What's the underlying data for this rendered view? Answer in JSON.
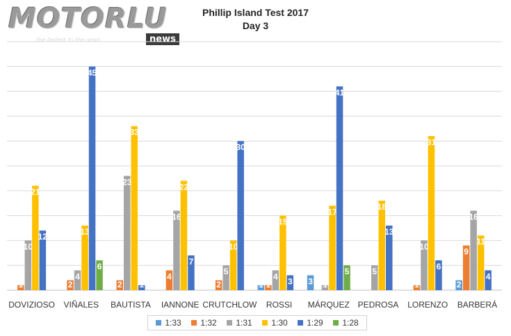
{
  "colors": {
    "1:33": "#5b9bd5",
    "1:32": "#ed7d31",
    "1:31": "#a5a5a5",
    "1:30": "#ffc000",
    "1:29": "#4472c4",
    "1:28": "#70ad47"
  },
  "logo": {
    "main": "MOTORLU",
    "badge": "news",
    "tagline": "the fastest to the news"
  },
  "chart_data": {
    "type": "bar",
    "title": "Phillip Island Test 2017",
    "subtitle": "Day 3",
    "categories": [
      "DOVIZIOSO",
      "VIÑALES",
      "BAUTISTA",
      "IANNONE",
      "CRUTCHLOW",
      "ROSSI",
      "MÁRQUEZ",
      "PEDROSA",
      "LORENZO",
      "BARBERÁ"
    ],
    "series": [
      {
        "name": "1:33",
        "values": [
          0,
          0,
          0,
          0,
          0,
          1,
          3,
          0,
          0,
          2
        ]
      },
      {
        "name": "1:32",
        "values": [
          1,
          2,
          2,
          4,
          2,
          1,
          0,
          0,
          1,
          9
        ]
      },
      {
        "name": "1:31",
        "values": [
          10,
          4,
          23,
          16,
          5,
          4,
          1,
          5,
          10,
          16
        ]
      },
      {
        "name": "1:30",
        "values": [
          21,
          13,
          33,
          22,
          10,
          15,
          17,
          18,
          31,
          11
        ]
      },
      {
        "name": "1:29",
        "values": [
          12,
          45,
          1,
          7,
          30,
          3,
          41,
          13,
          6,
          4
        ]
      },
      {
        "name": "1:28",
        "values": [
          0,
          6,
          0,
          0,
          0,
          0,
          5,
          0,
          0,
          0
        ]
      }
    ],
    "ylim": [
      0,
      50
    ],
    "grid": true,
    "legend": "bottom"
  }
}
